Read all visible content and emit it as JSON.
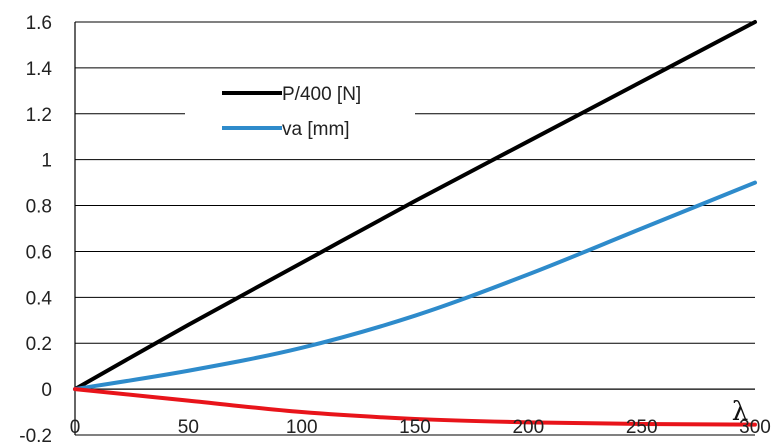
{
  "chart_data": {
    "type": "line",
    "title": "",
    "xlabel": "λ",
    "ylabel": "",
    "xlim": [
      0,
      300
    ],
    "ylim": [
      -0.2,
      1.6
    ],
    "x_ticks": [
      "0",
      "50",
      "100",
      "150",
      "200",
      "250",
      "300"
    ],
    "y_ticks": [
      "-0.2",
      "0",
      "0.2",
      "0.4",
      "0.6",
      "0.8",
      "1",
      "1.2",
      "1.4",
      "1.6"
    ],
    "grid": "horizontal",
    "legend_position": "top-left",
    "series": [
      {
        "name": "P/400 [N]",
        "color": "#000000",
        "in_legend": true,
        "x": [
          0,
          50,
          100,
          150,
          200,
          250,
          300
        ],
        "y": [
          0,
          0.28,
          0.55,
          0.82,
          1.08,
          1.34,
          1.6
        ]
      },
      {
        "name": "va [mm]",
        "color": "#2E8BCB",
        "in_legend": true,
        "x": [
          0,
          50,
          100,
          150,
          200,
          250,
          300
        ],
        "y": [
          0,
          0.08,
          0.18,
          0.32,
          0.5,
          0.7,
          0.9
        ]
      },
      {
        "name": "",
        "color": "#E8141A",
        "in_legend": false,
        "x": [
          0,
          50,
          100,
          150,
          200,
          250,
          300
        ],
        "y": [
          0,
          -0.05,
          -0.1,
          -0.13,
          -0.145,
          -0.152,
          -0.155
        ]
      }
    ]
  }
}
